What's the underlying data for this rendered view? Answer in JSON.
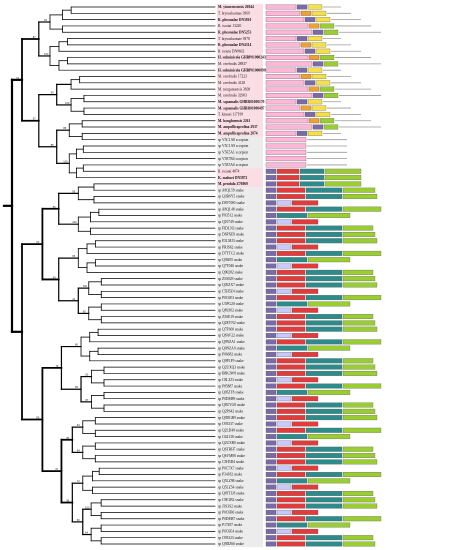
{
  "chart_data": {
    "type": "phylogenetic-tree-with-domain-architectures",
    "domain_colors": {
      "Zn_MMP_peptidase": "#e23b3b",
      "Reprolysin": "#e23b3b",
      "Disintegrin": "#2e8b8b",
      "ADAM_CR": "#2e8b8b",
      "ADAM_spacer": "#a0d940",
      "ACR": "#9acd32",
      "SVMP": "#ffb6d8",
      "Pep_M12B_propep": "#7a6aa8",
      "Sushi": "#f0a030",
      "EGF": "#f5e04a",
      "TM": "#333333",
      "Cys_rich": "#c9c9ff",
      "Tail": "#999999"
    },
    "taxa": [
      {
        "name": "M. yianxensensis 26944",
        "bold": true,
        "shade": "pink"
      },
      {
        "name": "T. bryoasluamae 3969",
        "bold": false,
        "shade": "pink"
      },
      {
        "name": "R. pheonalae DN3810",
        "bold": true,
        "shade": "pink"
      },
      {
        "name": "R. tscatai 13220",
        "bold": false,
        "shade": "pink"
      },
      {
        "name": "R. pheonalae DN5253",
        "bold": true,
        "shade": "pink"
      },
      {
        "name": "T. bryoasluamae 3978",
        "bold": false,
        "shade": "pink"
      },
      {
        "name": "R. pheonalae DN4314",
        "bold": true,
        "shade": "pink"
      },
      {
        "name": "R. tsoutu DN8602",
        "bold": false,
        "shade": "pink"
      },
      {
        "name": "H. sulminicola GHBP01000243",
        "bold": true,
        "shade": "pink"
      },
      {
        "name": "M. cerebralis 28837",
        "bold": false,
        "shade": "pink"
      },
      {
        "name": "H. sulminicola GHBP01000890",
        "bold": true,
        "shade": "pink"
      },
      {
        "name": "M. cerebralis 17223",
        "bold": false,
        "shade": "pink"
      },
      {
        "name": "M. cerebralis 4128",
        "bold": false,
        "shade": "pink"
      },
      {
        "name": "M. tsorgansensis 3838",
        "bold": false,
        "shade": "pink"
      },
      {
        "name": "M. cerebralis 32903",
        "bold": false,
        "shade": "pink"
      },
      {
        "name": "M. squamalis GHBR01000170",
        "bold": true,
        "shade": "pink"
      },
      {
        "name": "M. squamalis GHBR01000497",
        "bold": true,
        "shade": "pink"
      },
      {
        "name": "T. kitauei 117199",
        "bold": false,
        "shade": "pink"
      },
      {
        "name": "M. honghuensis 2261",
        "bold": true,
        "shade": "pink"
      },
      {
        "name": "M. ampullicaprolina 2937",
        "bold": true,
        "shade": "pink"
      },
      {
        "name": "M. ampullicaprolina 2874",
        "bold": true,
        "shade": "pink"
      },
      {
        "name": "sp V5C1A8 scorpion",
        "bold": false,
        "shade": "grey"
      },
      {
        "name": "sp V5C1A9 scorpion",
        "bold": false,
        "shade": "grey"
      },
      {
        "name": "sp V5E5A1 scorpion",
        "bold": false,
        "shade": "grey"
      },
      {
        "name": "sp V5E7B4 scorpion",
        "bold": false,
        "shade": "grey"
      },
      {
        "name": "sp V5E5A0 scorpion",
        "bold": false,
        "shade": "grey"
      },
      {
        "name": "R. tscatai 4874",
        "bold": false,
        "shade": "pink"
      },
      {
        "name": "K. mahuri DN5872",
        "bold": true,
        "shade": "pink"
      },
      {
        "name": "M. pendula Z76969",
        "bold": true,
        "shade": "pink"
      },
      {
        "name": "sp A8QL59 snake",
        "bold": false,
        "shade": "grey"
      },
      {
        "name": "sp Q3BSY5 snake",
        "bold": false,
        "shade": "grey"
      },
      {
        "name": "sp D8VNS0 snake",
        "bold": false,
        "shade": "grey"
      },
      {
        "name": "sp A8QL48 snake",
        "bold": false,
        "shade": "grey"
      },
      {
        "name": "sp P83512 snake",
        "bold": false,
        "shade": "grey"
      },
      {
        "name": "sp Q10749 snake",
        "bold": false,
        "shade": "grey"
      },
      {
        "name": "sp FIDLN3 snake",
        "bold": false,
        "shade": "grey"
      },
      {
        "name": "sp D6PXE9 snake",
        "bold": false,
        "shade": "grey"
      },
      {
        "name": "sp E5LMJ3 snake",
        "bold": false,
        "shade": "grey"
      },
      {
        "name": "sp PRJS62 snake",
        "bold": false,
        "shade": "grey"
      },
      {
        "name": "sp D7TTC2 snake",
        "bold": false,
        "shade": "grey"
      },
      {
        "name": "sp Q9I495 snake",
        "bold": false,
        "shade": "grey"
      },
      {
        "name": "sp Q7T046 snake",
        "bold": false,
        "shade": "grey"
      },
      {
        "name": "sp Q90282 snake",
        "bold": false,
        "shade": "grey"
      },
      {
        "name": "sp Z5S029 snake",
        "bold": false,
        "shade": "grey"
      },
      {
        "name": "sp Q05ZX7 snake",
        "bold": false,
        "shade": "grey"
      },
      {
        "name": "sp C5H5Z4 snake",
        "bold": false,
        "shade": "grey"
      },
      {
        "name": "sp P0C6E3 snake",
        "bold": false,
        "shade": "grey"
      },
      {
        "name": "sp U5PG20 snake",
        "bold": false,
        "shade": "grey"
      },
      {
        "name": "sp Q8UI02 snake",
        "bold": false,
        "shade": "grey"
      },
      {
        "name": "sp Z5SE19 snake",
        "bold": false,
        "shade": "grey"
      },
      {
        "name": "sp Q2EYN2 snake",
        "bold": false,
        "shade": "grey"
      },
      {
        "name": "sp Q7FS60 snake",
        "bold": false,
        "shade": "grey"
      },
      {
        "name": "sp Q8AV22 snake",
        "bold": false,
        "shade": "grey"
      },
      {
        "name": "sp Q9NZA1 snake",
        "bold": false,
        "shade": "grey"
      },
      {
        "name": "sp Q0NZA9 snake",
        "bold": false,
        "shade": "grey"
      },
      {
        "name": "sp P06682 snake",
        "bold": false,
        "shade": "grey"
      },
      {
        "name": "sp Q9PLF9 snake",
        "bold": false,
        "shade": "grey"
      },
      {
        "name": "sp Q2UXQ3 snake",
        "bold": false,
        "shade": "grey"
      },
      {
        "name": "sp B8K3W8 snake",
        "bold": false,
        "shade": "grey"
      },
      {
        "name": "sp C8LZJ3 snake",
        "bold": false,
        "shade": "grey"
      },
      {
        "name": "sp P85887 snake",
        "bold": false,
        "shade": "grey"
      },
      {
        "name": "sp Q05ZT8 snake",
        "bold": false,
        "shade": "grey"
      },
      {
        "name": "sp P0DM89 snake",
        "bold": false,
        "shade": "grey"
      },
      {
        "name": "sp Q8UYG8 snake",
        "bold": false,
        "shade": "grey"
      },
      {
        "name": "sp Q2PS42 snake",
        "bold": false,
        "shade": "grey"
      },
      {
        "name": "sp Q9DGB9 snake",
        "bold": false,
        "shade": "grey"
      },
      {
        "name": "sp O93337 snake",
        "bold": false,
        "shade": "grey"
      },
      {
        "name": "sp Q2LD48 snake",
        "bold": false,
        "shade": "grey"
      },
      {
        "name": "sp O42138 snake",
        "bold": false,
        "shade": "grey"
      },
      {
        "name": "sp Q2UXR0 snake",
        "bold": false,
        "shade": "grey"
      },
      {
        "name": "sp Q6TBH7 snake",
        "bold": false,
        "shade": "grey"
      },
      {
        "name": "sp Q6VM80 snake",
        "bold": false,
        "shade": "grey"
      },
      {
        "name": "sp C5H5D4 snake",
        "bold": false,
        "shade": "grey"
      },
      {
        "name": "sp P0C7X7 snake",
        "bold": false,
        "shade": "grey"
      },
      {
        "name": "sp P34182 snake",
        "bold": false,
        "shade": "grey"
      },
      {
        "name": "sp Q5LZ98 snake",
        "bold": false,
        "shade": "grey"
      },
      {
        "name": "sp Q5LZ54 snake",
        "bold": false,
        "shade": "grey"
      },
      {
        "name": "sp Q8TTU8 snake",
        "bold": false,
        "shade": "grey"
      },
      {
        "name": "sp C9E1B2 snake",
        "bold": false,
        "shade": "grey"
      },
      {
        "name": "sp J3S3S2 snake",
        "bold": false,
        "shade": "grey"
      },
      {
        "name": "sp P0C6B6 snake",
        "bold": false,
        "shade": "grey"
      },
      {
        "name": "sp P0DM87 snake",
        "bold": false,
        "shade": "grey"
      },
      {
        "name": "sp P17497 snake",
        "bold": false,
        "shade": "grey"
      },
      {
        "name": "sp P0C6E4 snake",
        "bold": false,
        "shade": "grey"
      },
      {
        "name": "sp O93323 snake",
        "bold": false,
        "shade": "grey"
      },
      {
        "name": "sp Q9DZ66 snake",
        "bold": false,
        "shade": "grey"
      }
    ],
    "bootstrap_values": [
      "94",
      "100",
      "87",
      "100",
      "93",
      "88",
      "100",
      "85",
      "97",
      "74",
      "99",
      "100",
      "56",
      "65",
      "100",
      "95",
      "41",
      "54",
      "62",
      "80",
      "82",
      "87",
      "96",
      "79",
      "63",
      "94",
      "80",
      "72",
      "100",
      "64",
      "60",
      "56",
      "67",
      "85"
    ]
  }
}
